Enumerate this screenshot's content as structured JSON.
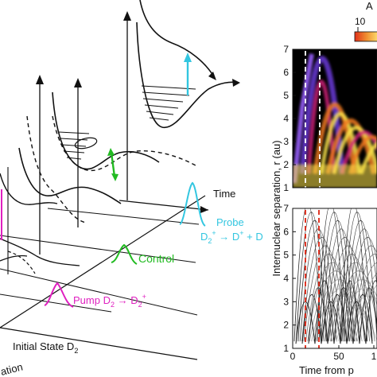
{
  "schematic": {
    "time_label": "Time",
    "initial_state_prefix": "Initial State D",
    "initial_state_sub": "2",
    "partial_axis_label": "ation",
    "pump_prefix": "Pump D",
    "pump_sub": "2",
    "pump_arrow": " → D",
    "pump_sub2": "2",
    "pump_sup": "+",
    "control_label": "Control",
    "probe_label": "Probe",
    "probe_eq_prefix": "D",
    "probe_eq_sub": "2",
    "probe_eq_sup": "+",
    "probe_eq_arrow": " → D",
    "probe_eq_sup2": "+",
    "probe_eq_end": " + D",
    "colors": {
      "pump": "#e020c0",
      "control": "#22bb22",
      "probe": "#33c6e0",
      "hatch": "#111111"
    }
  },
  "plots": {
    "colorbar_title_partial": "A",
    "colorbar_tick_partial": "10",
    "y_axis_label": "Internuclear separation, r (au)",
    "x_axis_label_partial": "Time from p",
    "top_panel": {
      "yticks": [
        "1",
        "2",
        "3",
        "4",
        "5",
        "6",
        "7"
      ],
      "dashed_line_color": "#ffffff",
      "colormap": [
        "#000000",
        "#5a1a8a",
        "#d0207a",
        "#f07a20",
        "#fde44a",
        "#ffffff"
      ]
    },
    "bottom_panel": {
      "yticks": [
        "1",
        "2",
        "3",
        "4",
        "5",
        "6",
        "7"
      ],
      "xticks": [
        "0",
        "50",
        "1"
      ],
      "dashed_line_color": "#dd2211",
      "trajectory_color": "#333333"
    }
  },
  "chart_data": [
    {
      "type": "heatmap",
      "title": "",
      "xlabel": "Time from p",
      "ylabel": "Internuclear separation, r (au)",
      "ylim": [
        1,
        7
      ],
      "yticks": [
        1,
        2,
        3,
        4,
        5,
        6,
        7
      ],
      "colorbar_label": "A",
      "colorbar_tick": "10",
      "vertical_markers": [
        "dashed white",
        "dashed white"
      ]
    },
    {
      "type": "line",
      "title": "",
      "xlabel": "Time from p",
      "ylabel": "Internuclear separation, r (au)",
      "ylim": [
        1,
        7
      ],
      "yticks": [
        1,
        2,
        3,
        4,
        5,
        6,
        7
      ],
      "xticks": [
        0,
        50
      ],
      "vertical_markers": [
        "dashed red",
        "dashed red"
      ],
      "series_description": "classical trajectories r(t), black to grey"
    }
  ]
}
